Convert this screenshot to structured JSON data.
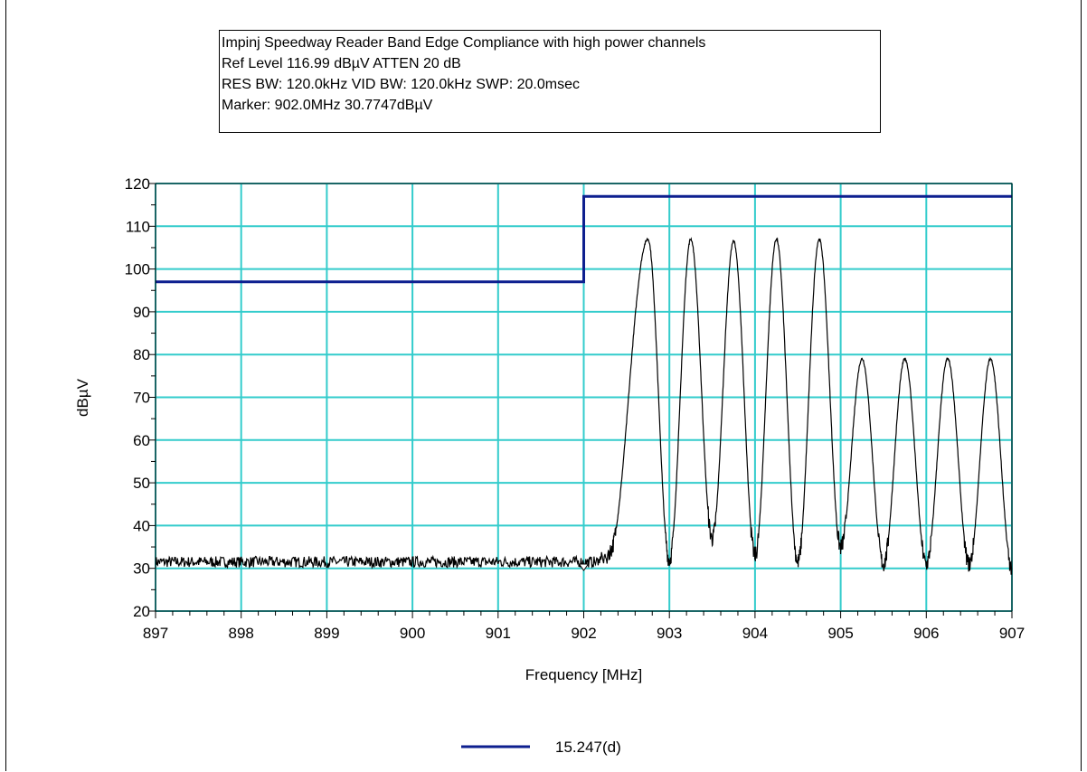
{
  "info_box": {
    "line1": "Impinj Speedway Reader Band Edge Compliance with high power channels",
    "line2": "Ref Level 116.99 dBµV     ATTEN 20 dB",
    "line3": "RES BW: 120.0kHz  VID BW: 120.0kHz  SWP: 20.0msec",
    "line4": "Marker: 902.0MHz  30.7747dBµV"
  },
  "chart_data": {
    "type": "line",
    "xlabel": "Frequency [MHz]",
    "ylabel": "dBµV",
    "xlim": [
      897,
      907
    ],
    "ylim": [
      20,
      120
    ],
    "x_ticks": [
      "897",
      "898",
      "899",
      "900",
      "901",
      "902",
      "903",
      "904",
      "905",
      "906",
      "907"
    ],
    "y_ticks": [
      "20",
      "30",
      "40",
      "50",
      "60",
      "70",
      "80",
      "90",
      "100",
      "110",
      "120"
    ],
    "grid": true,
    "legend_position": "bottom-center",
    "colors": {
      "grid": "#33cccc",
      "limit": "#0d1f8f",
      "trace": "#000000"
    },
    "marker": {
      "x": 902.0,
      "y": 30.7747
    },
    "noise_floor": {
      "x_range": [
        897,
        902.3
      ],
      "mean": 31.5,
      "jitter": 1.3
    },
    "series": [
      {
        "name": "15.247(d)",
        "kind": "limit",
        "x": [
          897,
          902,
          902,
          907
        ],
        "y": [
          97,
          97,
          117,
          117
        ]
      },
      {
        "kind": "trace",
        "peaks": [
          {
            "x": 902.75,
            "y": 107
          },
          {
            "x": 903.25,
            "y": 107
          },
          {
            "x": 903.75,
            "y": 106.5
          },
          {
            "x": 904.25,
            "y": 107
          },
          {
            "x": 904.75,
            "y": 107
          },
          {
            "x": 905.25,
            "y": 79
          },
          {
            "x": 905.75,
            "y": 79
          },
          {
            "x": 906.25,
            "y": 79
          },
          {
            "x": 906.75,
            "y": 79
          }
        ],
        "valleys": [
          {
            "x": 903.0,
            "y": 32
          },
          {
            "x": 903.5,
            "y": 37
          },
          {
            "x": 904.0,
            "y": 33
          },
          {
            "x": 904.5,
            "y": 31.5
          },
          {
            "x": 905.0,
            "y": 35
          },
          {
            "x": 905.5,
            "y": 31
          },
          {
            "x": 906.0,
            "y": 31
          },
          {
            "x": 906.5,
            "y": 31
          },
          {
            "x": 907.0,
            "y": 30
          }
        ]
      }
    ]
  }
}
